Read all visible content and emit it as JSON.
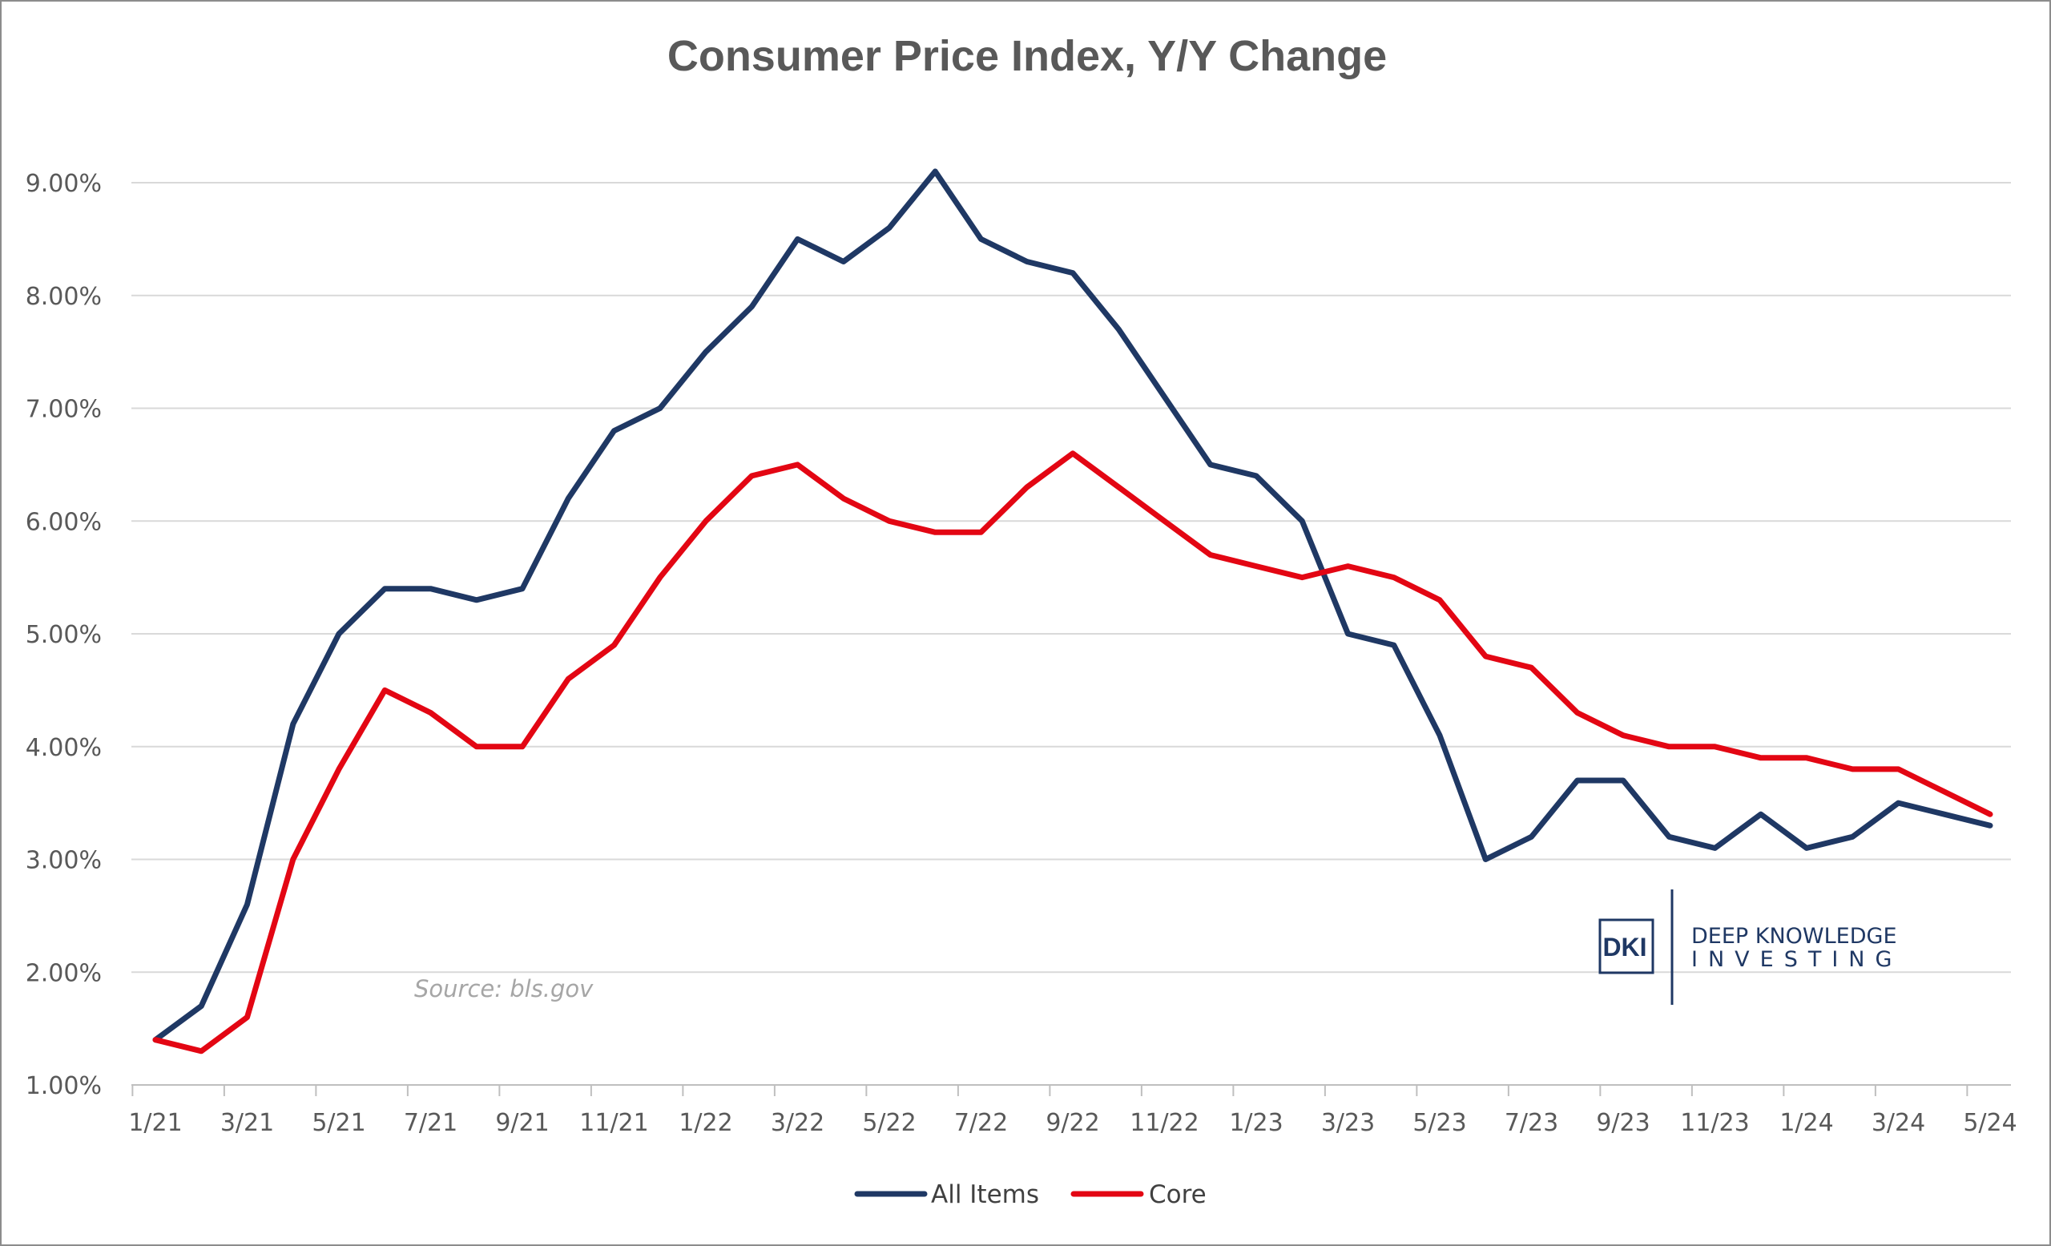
{
  "chart_data": {
    "type": "line",
    "title": "Consumer Price Index, Y/Y Change",
    "xlabel": "",
    "ylabel": "",
    "ylim": [
      1.0,
      9.0
    ],
    "y_ticks": [
      "1.00%",
      "2.00%",
      "3.00%",
      "4.00%",
      "5.00%",
      "6.00%",
      "7.00%",
      "8.00%",
      "9.00%"
    ],
    "x_tick_labels": [
      "1/21",
      "3/21",
      "5/21",
      "7/21",
      "9/21",
      "11/21",
      "1/22",
      "3/22",
      "5/22",
      "7/22",
      "9/22",
      "11/22",
      "1/23",
      "3/23",
      "5/23",
      "7/23",
      "9/23",
      "11/23",
      "1/24",
      "3/24",
      "5/24"
    ],
    "grid": true,
    "legend": "bottom-center",
    "x": [
      "1/21",
      "2/21",
      "3/21",
      "4/21",
      "5/21",
      "6/21",
      "7/21",
      "8/21",
      "9/21",
      "10/21",
      "11/21",
      "12/21",
      "1/22",
      "2/22",
      "3/22",
      "4/22",
      "5/22",
      "6/22",
      "7/22",
      "8/22",
      "9/22",
      "10/22",
      "11/22",
      "12/22",
      "1/23",
      "2/23",
      "3/23",
      "4/23",
      "5/23",
      "6/23",
      "7/23",
      "8/23",
      "9/23",
      "10/23",
      "11/23",
      "12/23",
      "1/24",
      "2/24",
      "3/24",
      "4/24",
      "5/24"
    ],
    "series": [
      {
        "name": "All Items",
        "color": "#1f3864",
        "values": [
          1.4,
          1.7,
          2.6,
          4.2,
          5.0,
          5.4,
          5.4,
          5.3,
          5.4,
          6.2,
          6.8,
          7.0,
          7.5,
          7.9,
          8.5,
          8.3,
          8.6,
          9.1,
          8.5,
          8.3,
          8.2,
          7.7,
          7.1,
          6.5,
          6.4,
          6.0,
          5.0,
          4.9,
          4.1,
          3.0,
          3.2,
          3.7,
          3.7,
          3.2,
          3.1,
          3.4,
          3.1,
          3.2,
          3.5,
          3.4,
          3.3
        ]
      },
      {
        "name": "Core",
        "color": "#e30613",
        "values": [
          1.4,
          1.3,
          1.6,
          3.0,
          3.8,
          4.5,
          4.3,
          4.0,
          4.0,
          4.6,
          4.9,
          5.5,
          6.0,
          6.4,
          6.5,
          6.2,
          6.0,
          5.9,
          5.9,
          6.3,
          6.6,
          6.3,
          6.0,
          5.7,
          5.6,
          5.5,
          5.6,
          5.5,
          5.3,
          4.8,
          4.7,
          4.3,
          4.1,
          4.0,
          4.0,
          3.9,
          3.9,
          3.8,
          3.8,
          3.6,
          3.4
        ]
      }
    ],
    "annotations": [
      "Source: bls.gov"
    ]
  },
  "logo": {
    "mark": "DKI",
    "line1": "DEEP KNOWLEDGE",
    "line2": "INVESTING"
  }
}
